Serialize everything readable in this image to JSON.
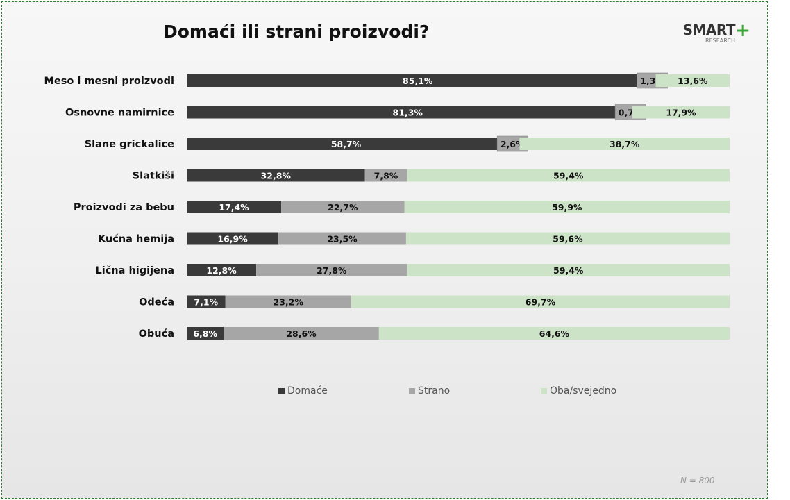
{
  "title": "Domaći ili strani proizvodi?",
  "logo": {
    "brand": "SMART",
    "plus": "+",
    "sub": "RESEARCH"
  },
  "note": "N = 800",
  "chart_data": {
    "type": "bar",
    "orientation": "horizontal",
    "stacked": true,
    "normalized": true,
    "xlim": [
      0,
      100
    ],
    "categories": [
      "Meso i mesni proizvodi",
      "Osnovne namirnice",
      "Slane grickalice",
      "Slatkiši",
      "Proizvodi za bebu",
      "Kućna hemija",
      "Lična higijena",
      "Odeća",
      "Obuća"
    ],
    "series": [
      {
        "name": "Domaće",
        "color": "#3a3a3a",
        "label_color": "#ffffff",
        "values": [
          85.1,
          81.3,
          58.7,
          32.8,
          17.4,
          16.9,
          12.8,
          7.1,
          6.8
        ],
        "labels": [
          "85,1%",
          "81,3%",
          "58,7%",
          "32,8%",
          "17,4%",
          "16,9%",
          "12,8%",
          "7,1%",
          "6,8%"
        ]
      },
      {
        "name": "Strano",
        "color": "#a6a6a6",
        "label_color": "#111111",
        "values": [
          1.3,
          0.7,
          2.6,
          7.8,
          22.7,
          23.5,
          27.8,
          23.2,
          28.6
        ],
        "labels": [
          "1,3%",
          "0,7%",
          "2,6%",
          "7,8%",
          "22,7%",
          "23,5%",
          "27,8%",
          "23,2%",
          "28,6%"
        ]
      },
      {
        "name": "Oba/svejedno",
        "color": "#cde3c8",
        "label_color": "#111111",
        "values": [
          13.6,
          17.9,
          38.7,
          59.4,
          59.9,
          59.6,
          59.4,
          69.7,
          64.6
        ],
        "labels": [
          "13,6%",
          "17,9%",
          "38,7%",
          "59,4%",
          "59,9%",
          "59,6%",
          "59,4%",
          "69,7%",
          "64,6%"
        ]
      }
    ],
    "legend_position": "bottom"
  }
}
